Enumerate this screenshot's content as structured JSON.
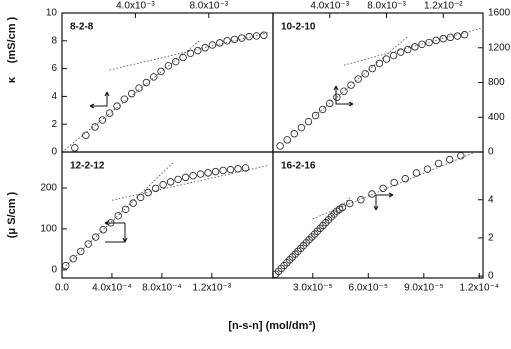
{
  "figure": {
    "y_label_upper_symbol": "κ",
    "y_label_upper": "(mS/cm )",
    "y_label_lower": "(μ S/cm )",
    "x_label": "[n-s-n] (mol/dm³)"
  },
  "chart_data": [
    {
      "type": "scatter",
      "label": "8-2-8",
      "x_axis": "top",
      "y_axis": "left",
      "x": [
        0.0007,
        0.0013,
        0.0018,
        0.0022,
        0.0026,
        0.003,
        0.0034,
        0.0038,
        0.0042,
        0.0046,
        0.005,
        0.0054,
        0.0058,
        0.0062,
        0.0066,
        0.007,
        0.0074,
        0.0078,
        0.0082,
        0.0086,
        0.009,
        0.0094,
        0.0098,
        0.0102,
        0.0106,
        0.011
      ],
      "y": [
        0.3,
        1.2,
        1.8,
        2.3,
        2.8,
        3.3,
        3.8,
        4.2,
        4.6,
        5,
        5.4,
        5.8,
        6.2,
        6.5,
        6.8,
        7.1,
        7.3,
        7.5,
        7.7,
        7.85,
        8,
        8.1,
        8.2,
        8.3,
        8.35,
        8.4
      ],
      "fits": [
        {
          "x": [
            0,
            0.0075
          ],
          "y": [
            0,
            8
          ]
        },
        {
          "x": [
            0.0026,
            0.0113
          ],
          "y": [
            5.9,
            8.6
          ]
        }
      ],
      "xlim": [
        0,
        0.0115
      ],
      "ylim": [
        0,
        10
      ],
      "xticks": [
        {
          "value": 0.004,
          "label": "4.0x10⁻³"
        },
        {
          "value": 0.008,
          "label": "8.0x10⁻³"
        }
      ],
      "yticks": [
        0,
        2,
        4,
        6,
        8,
        10
      ]
    },
    {
      "type": "scatter",
      "label": "10-2-10",
      "x_axis": "top",
      "y_axis": "right",
      "x": [
        0.0005,
        0.001,
        0.0015,
        0.002,
        0.0025,
        0.003,
        0.0035,
        0.004,
        0.0045,
        0.005,
        0.0055,
        0.006,
        0.0065,
        0.007,
        0.0075,
        0.008,
        0.0085,
        0.009,
        0.0095,
        0.01,
        0.0105,
        0.011,
        0.0115,
        0.012,
        0.0125,
        0.013,
        0.0135
      ],
      "y": [
        70,
        140,
        210,
        280,
        350,
        420,
        490,
        560,
        630,
        700,
        770,
        840,
        900,
        960,
        1020,
        1070,
        1110,
        1150,
        1180,
        1210,
        1240,
        1260,
        1285,
        1305,
        1320,
        1335,
        1350
      ],
      "fits": [
        {
          "x": [
            0.003,
            0.0095
          ],
          "y": [
            420,
            1330
          ]
        },
        {
          "x": [
            0.005,
            0.0148
          ],
          "y": [
            1000,
            1430
          ]
        }
      ],
      "xlim": [
        0,
        0.0148
      ],
      "ylim": [
        0,
        1600
      ],
      "xticks": [
        {
          "value": 0.004,
          "label": "4.0x10⁻³"
        },
        {
          "value": 0.008,
          "label": "8.0x10⁻³"
        },
        {
          "value": 0.012,
          "label": "1.2x10⁻²"
        }
      ],
      "yticks": [
        0,
        400,
        800,
        1200,
        1600
      ]
    },
    {
      "type": "scatter",
      "label": "12-2-12",
      "x_axis": "bottom",
      "y_axis": "left",
      "x": [
        3e-05,
        9e-05,
        0.00015,
        0.00021,
        0.00027,
        0.00033,
        0.00039,
        0.00045,
        0.00051,
        0.00057,
        0.00063,
        0.00069,
        0.00075,
        0.00081,
        0.00087,
        0.00093,
        0.00099,
        0.00105,
        0.00111,
        0.00117,
        0.00123,
        0.00129,
        0.00135,
        0.00141,
        0.00147
      ],
      "y": [
        10,
        27,
        45,
        63,
        80,
        98,
        115,
        132,
        148,
        163,
        177,
        189,
        199,
        208,
        215,
        221,
        226,
        230,
        234,
        237,
        240,
        243,
        245,
        247,
        249
      ],
      "fits": [
        {
          "x": [
            3e-05,
            0.0009
          ],
          "y": [
            10,
            265
          ]
        },
        {
          "x": [
            0.0004,
            0.00165
          ],
          "y": [
            170,
            255
          ]
        }
      ],
      "xlim": [
        0,
        0.00169
      ],
      "ylim": [
        -20,
        288
      ],
      "xticks": [
        {
          "value": 0,
          "label": "0.0"
        },
        {
          "value": 0.0004,
          "label": "4.0x10⁻⁴"
        },
        {
          "value": 0.0008,
          "label": "8.0x10⁻⁴"
        },
        {
          "value": 0.0012,
          "label": "1.2x10⁻³"
        }
      ],
      "yticks": [
        0,
        100,
        200
      ]
    },
    {
      "type": "scatter",
      "label": "16-2-16",
      "x_axis": "bottom",
      "y_axis": "right",
      "x": [
        1e-05,
        1.15e-05,
        1.3e-05,
        1.45e-05,
        1.6e-05,
        1.75e-05,
        1.9e-05,
        2.05e-05,
        2.2e-05,
        2.35e-05,
        2.5e-05,
        2.65e-05,
        2.8e-05,
        2.95e-05,
        3.1e-05,
        3.25e-05,
        3.4e-05,
        3.55e-05,
        3.7e-05,
        3.85e-05,
        4e-05,
        4.15e-05,
        4.3e-05,
        4.45e-05,
        4.6e-05,
        5e-05,
        5.6e-05,
        6.2e-05,
        6.8e-05,
        7.4e-05,
        8e-05,
        8.6e-05,
        9.2e-05,
        9.8e-05,
        0.000104,
        0.00011
      ],
      "y": [
        0.1,
        0.25,
        0.4,
        0.55,
        0.7,
        0.85,
        1,
        1.15,
        1.3,
        1.45,
        1.6,
        1.75,
        1.9,
        2.05,
        2.2,
        2.35,
        2.5,
        2.65,
        2.8,
        2.95,
        3.1,
        3.25,
        3.4,
        3.5,
        3.6,
        3.8,
        4,
        4.3,
        4.6,
        4.9,
        5.1,
        5.4,
        5.6,
        5.9,
        6.1,
        6.3
      ],
      "fits": [
        {
          "x": [
            2e-05,
            5e-05
          ],
          "y": [
            1.2,
            4.1
          ]
        },
        {
          "x": [
            3e-05,
            0.000118
          ],
          "y": [
            3,
            6.5
          ]
        }
      ],
      "xlim": [
        8.5e-06,
        0.000122
      ],
      "ylim": [
        -0.1,
        6.5
      ],
      "xticks": [
        {
          "value": 3e-05,
          "label": "3.0x10⁻⁵"
        },
        {
          "value": 6e-05,
          "label": "6.0x10⁻⁵"
        },
        {
          "value": 9e-05,
          "label": "9.0x10⁻⁵"
        },
        {
          "value": 0.00012,
          "label": "1.2x10⁻⁴"
        }
      ],
      "yticks": [
        0,
        2,
        4
      ]
    }
  ]
}
